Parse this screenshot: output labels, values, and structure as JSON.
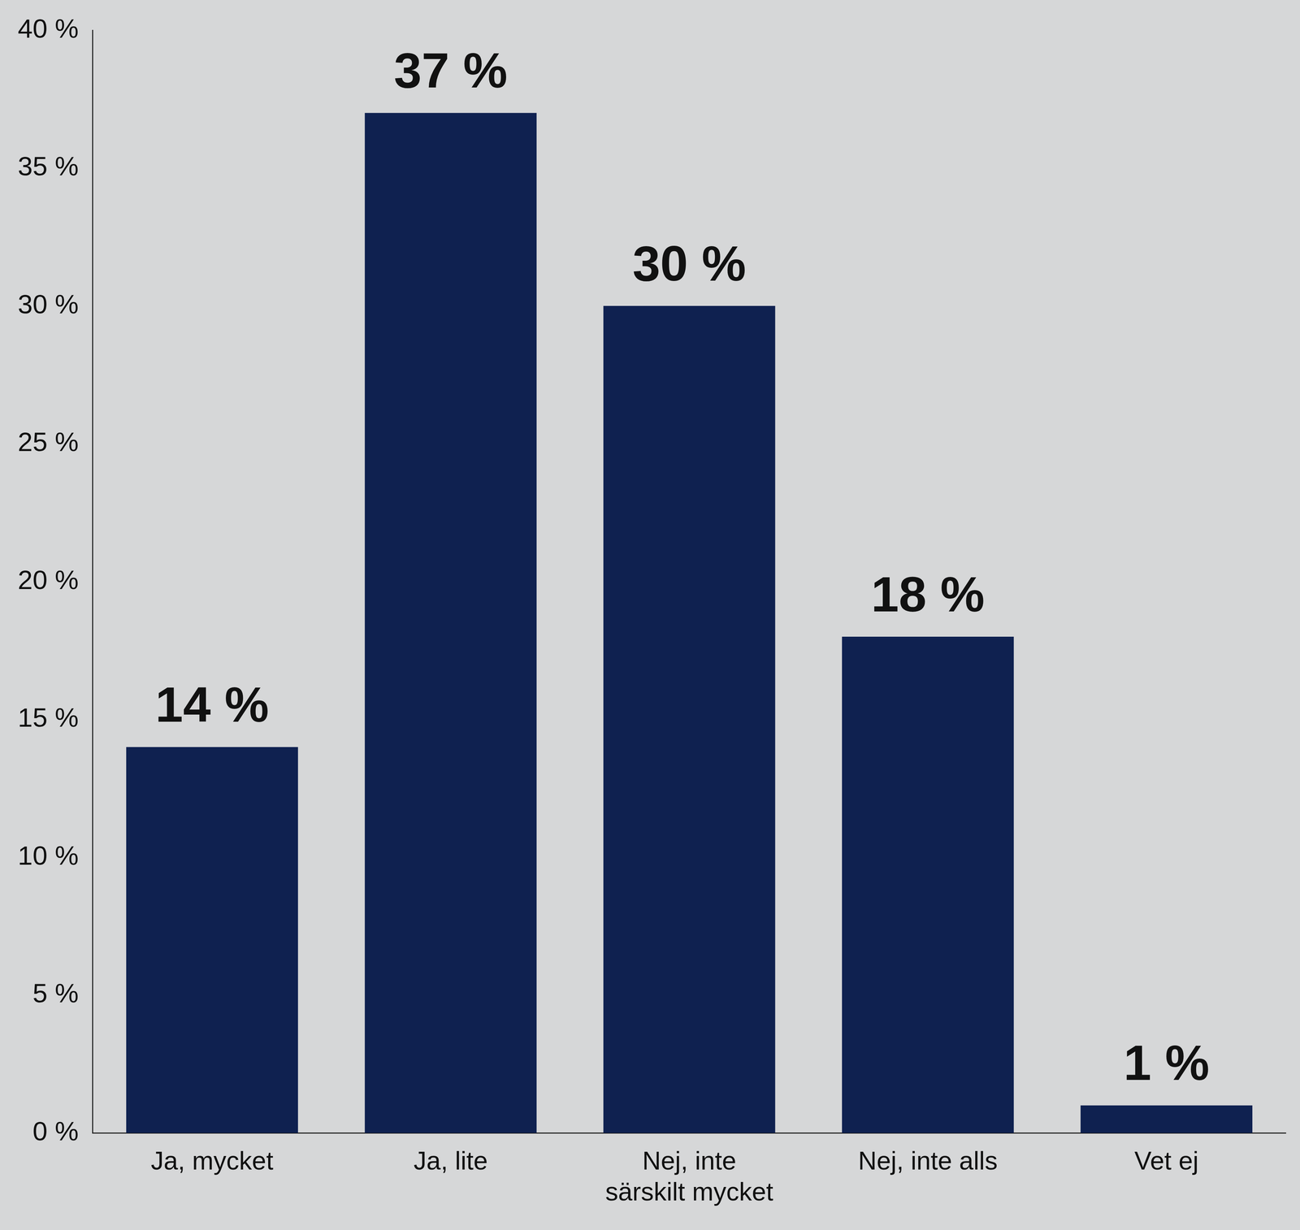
{
  "chart_data": {
    "type": "bar",
    "categories": [
      "Ja, mycket",
      "Ja, lite",
      "Nej, inte särskilt mycket",
      "Nej, inte alls",
      "Vet ej"
    ],
    "values": [
      14,
      37,
      30,
      18,
      1
    ],
    "value_labels": [
      "14 %",
      "37 %",
      "30 %",
      "18 %",
      "1 %"
    ],
    "data_labels": true,
    "color": "#0f2150",
    "ylim": [
      0,
      40
    ],
    "yticks": [
      {
        "value": 0,
        "label": "0 %"
      },
      {
        "value": 5,
        "label": "5 %"
      },
      {
        "value": 10,
        "label": "10 %"
      },
      {
        "value": 15,
        "label": "15 %"
      },
      {
        "value": 20,
        "label": "20 %"
      },
      {
        "value": 25,
        "label": "25 %"
      },
      {
        "value": 30,
        "label": "30 %"
      },
      {
        "value": 35,
        "label": "35 %"
      },
      {
        "value": 40,
        "label": "40 %"
      }
    ],
    "grid": false
  }
}
